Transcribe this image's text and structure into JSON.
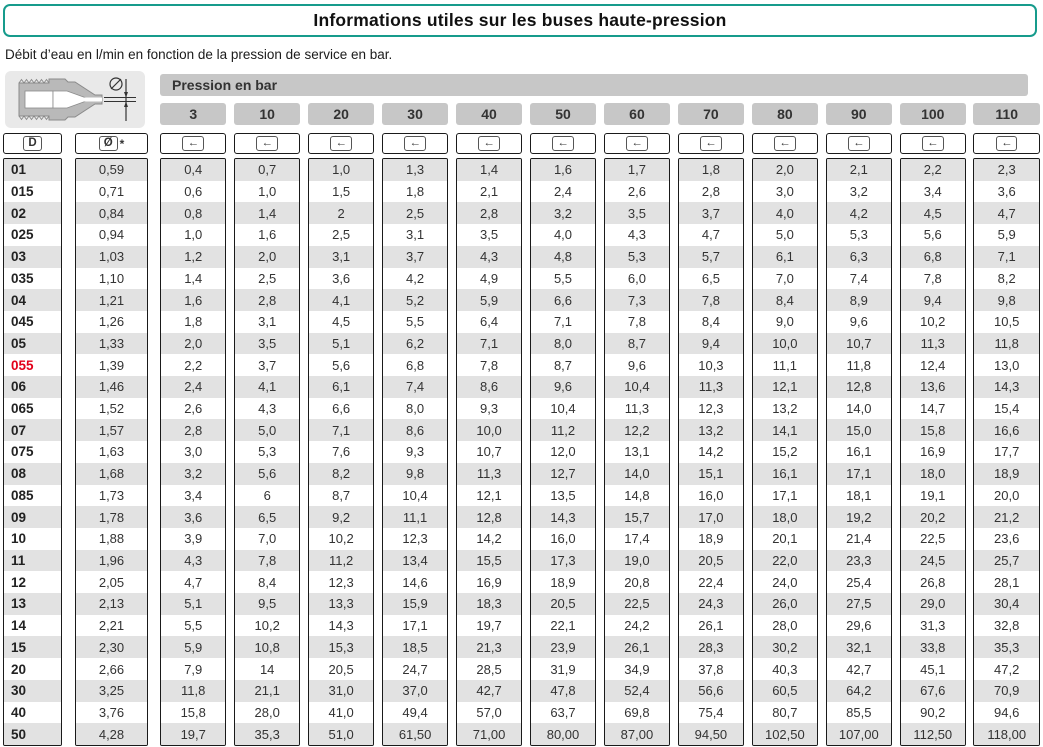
{
  "title": "Informations utiles sur les buses haute-pression",
  "subtitle": "Débit d’eau en l/min en fonction de la pression de service en bar.",
  "pressure_band_label": "Pression en bar",
  "pressure_columns": [
    "3",
    "10",
    "20",
    "30",
    "40",
    "50",
    "60",
    "70",
    "80",
    "90",
    "100",
    "110"
  ],
  "column_icons": {
    "d_label": "D",
    "diameter_label": "Ø",
    "diameter_suffix": "*",
    "flow_arrow": "←"
  },
  "highlight_row": "055",
  "colors": {
    "accent_teal": "#169b8c",
    "header_gray": "#c7c7c7",
    "row_stripe_gray": "#e2e2e2",
    "border_dark": "#1a1a1a",
    "text_dark": "#333333",
    "highlight_red": "#e2001a"
  },
  "rows": [
    {
      "d": "01",
      "diameter": "0,59",
      "flows": [
        "0,4",
        "0,7",
        "1,0",
        "1,3",
        "1,4",
        "1,6",
        "1,7",
        "1,8",
        "2,0",
        "2,1",
        "2,2",
        "2,3"
      ]
    },
    {
      "d": "015",
      "diameter": "0,71",
      "flows": [
        "0,6",
        "1,0",
        "1,5",
        "1,8",
        "2,1",
        "2,4",
        "2,6",
        "2,8",
        "3,0",
        "3,2",
        "3,4",
        "3,6"
      ]
    },
    {
      "d": "02",
      "diameter": "0,84",
      "flows": [
        "0,8",
        "1,4",
        "2",
        "2,5",
        "2,8",
        "3,2",
        "3,5",
        "3,7",
        "4,0",
        "4,2",
        "4,5",
        "4,7"
      ]
    },
    {
      "d": "025",
      "diameter": "0,94",
      "flows": [
        "1,0",
        "1,6",
        "2,5",
        "3,1",
        "3,5",
        "4,0",
        "4,3",
        "4,7",
        "5,0",
        "5,3",
        "5,6",
        "5,9"
      ]
    },
    {
      "d": "03",
      "diameter": "1,03",
      "flows": [
        "1,2",
        "2,0",
        "3,1",
        "3,7",
        "4,3",
        "4,8",
        "5,3",
        "5,7",
        "6,1",
        "6,3",
        "6,8",
        "7,1"
      ]
    },
    {
      "d": "035",
      "diameter": "1,10",
      "flows": [
        "1,4",
        "2,5",
        "3,6",
        "4,2",
        "4,9",
        "5,5",
        "6,0",
        "6,5",
        "7,0",
        "7,4",
        "7,8",
        "8,2"
      ]
    },
    {
      "d": "04",
      "diameter": "1,21",
      "flows": [
        "1,6",
        "2,8",
        "4,1",
        "5,2",
        "5,9",
        "6,6",
        "7,3",
        "7,8",
        "8,4",
        "8,9",
        "9,4",
        "9,8"
      ]
    },
    {
      "d": "045",
      "diameter": "1,26",
      "flows": [
        "1,8",
        "3,1",
        "4,5",
        "5,5",
        "6,4",
        "7,1",
        "7,8",
        "8,4",
        "9,0",
        "9,6",
        "10,2",
        "10,5"
      ]
    },
    {
      "d": "05",
      "diameter": "1,33",
      "flows": [
        "2,0",
        "3,5",
        "5,1",
        "6,2",
        "7,1",
        "8,0",
        "8,7",
        "9,4",
        "10,0",
        "10,7",
        "11,3",
        "11,8"
      ]
    },
    {
      "d": "055",
      "diameter": "1,39",
      "flows": [
        "2,2",
        "3,7",
        "5,6",
        "6,8",
        "7,8",
        "8,7",
        "9,6",
        "10,3",
        "11,1",
        "11,8",
        "12,4",
        "13,0"
      ]
    },
    {
      "d": "06",
      "diameter": "1,46",
      "flows": [
        "2,4",
        "4,1",
        "6,1",
        "7,4",
        "8,6",
        "9,6",
        "10,4",
        "11,3",
        "12,1",
        "12,8",
        "13,6",
        "14,3"
      ]
    },
    {
      "d": "065",
      "diameter": "1,52",
      "flows": [
        "2,6",
        "4,3",
        "6,6",
        "8,0",
        "9,3",
        "10,4",
        "11,3",
        "12,3",
        "13,2",
        "14,0",
        "14,7",
        "15,4"
      ]
    },
    {
      "d": "07",
      "diameter": "1,57",
      "flows": [
        "2,8",
        "5,0",
        "7,1",
        "8,6",
        "10,0",
        "11,2",
        "12,2",
        "13,2",
        "14,1",
        "15,0",
        "15,8",
        "16,6"
      ]
    },
    {
      "d": "075",
      "diameter": "1,63",
      "flows": [
        "3,0",
        "5,3",
        "7,6",
        "9,3",
        "10,7",
        "12,0",
        "13,1",
        "14,2",
        "15,2",
        "16,1",
        "16,9",
        "17,7"
      ]
    },
    {
      "d": "08",
      "diameter": "1,68",
      "flows": [
        "3,2",
        "5,6",
        "8,2",
        "9,8",
        "11,3",
        "12,7",
        "14,0",
        "15,1",
        "16,1",
        "17,1",
        "18,0",
        "18,9"
      ]
    },
    {
      "d": "085",
      "diameter": "1,73",
      "flows": [
        "3,4",
        "6",
        "8,7",
        "10,4",
        "12,1",
        "13,5",
        "14,8",
        "16,0",
        "17,1",
        "18,1",
        "19,1",
        "20,0"
      ]
    },
    {
      "d": "09",
      "diameter": "1,78",
      "flows": [
        "3,6",
        "6,5",
        "9,2",
        "11,1",
        "12,8",
        "14,3",
        "15,7",
        "17,0",
        "18,0",
        "19,2",
        "20,2",
        "21,2"
      ]
    },
    {
      "d": "10",
      "diameter": "1,88",
      "flows": [
        "3,9",
        "7,0",
        "10,2",
        "12,3",
        "14,2",
        "16,0",
        "17,4",
        "18,9",
        "20,1",
        "21,4",
        "22,5",
        "23,6"
      ]
    },
    {
      "d": "11",
      "diameter": "1,96",
      "flows": [
        "4,3",
        "7,8",
        "11,2",
        "13,4",
        "15,5",
        "17,3",
        "19,0",
        "20,5",
        "22,0",
        "23,3",
        "24,5",
        "25,7"
      ]
    },
    {
      "d": "12",
      "diameter": "2,05",
      "flows": [
        "4,7",
        "8,4",
        "12,3",
        "14,6",
        "16,9",
        "18,9",
        "20,8",
        "22,4",
        "24,0",
        "25,4",
        "26,8",
        "28,1"
      ]
    },
    {
      "d": "13",
      "diameter": "2,13",
      "flows": [
        "5,1",
        "9,5",
        "13,3",
        "15,9",
        "18,3",
        "20,5",
        "22,5",
        "24,3",
        "26,0",
        "27,5",
        "29,0",
        "30,4"
      ]
    },
    {
      "d": "14",
      "diameter": "2,21",
      "flows": [
        "5,5",
        "10,2",
        "14,3",
        "17,1",
        "19,7",
        "22,1",
        "24,2",
        "26,1",
        "28,0",
        "29,6",
        "31,3",
        "32,8"
      ]
    },
    {
      "d": "15",
      "diameter": "2,30",
      "flows": [
        "5,9",
        "10,8",
        "15,3",
        "18,5",
        "21,3",
        "23,9",
        "26,1",
        "28,3",
        "30,2",
        "32,1",
        "33,8",
        "35,3"
      ]
    },
    {
      "d": "20",
      "diameter": "2,66",
      "flows": [
        "7,9",
        "14",
        "20,5",
        "24,7",
        "28,5",
        "31,9",
        "34,9",
        "37,8",
        "40,3",
        "42,7",
        "45,1",
        "47,2"
      ]
    },
    {
      "d": "30",
      "diameter": "3,25",
      "flows": [
        "11,8",
        "21,1",
        "31,0",
        "37,0",
        "42,7",
        "47,8",
        "52,4",
        "56,6",
        "60,5",
        "64,2",
        "67,6",
        "70,9"
      ]
    },
    {
      "d": "40",
      "diameter": "3,76",
      "flows": [
        "15,8",
        "28,0",
        "41,0",
        "49,4",
        "57,0",
        "63,7",
        "69,8",
        "75,4",
        "80,7",
        "85,5",
        "90,2",
        "94,6"
      ]
    },
    {
      "d": "50",
      "diameter": "4,28",
      "flows": [
        "19,7",
        "35,3",
        "51,0",
        "61,50",
        "71,00",
        "80,00",
        "87,00",
        "94,50",
        "102,50",
        "107,00",
        "112,50",
        "118,00"
      ]
    }
  ]
}
